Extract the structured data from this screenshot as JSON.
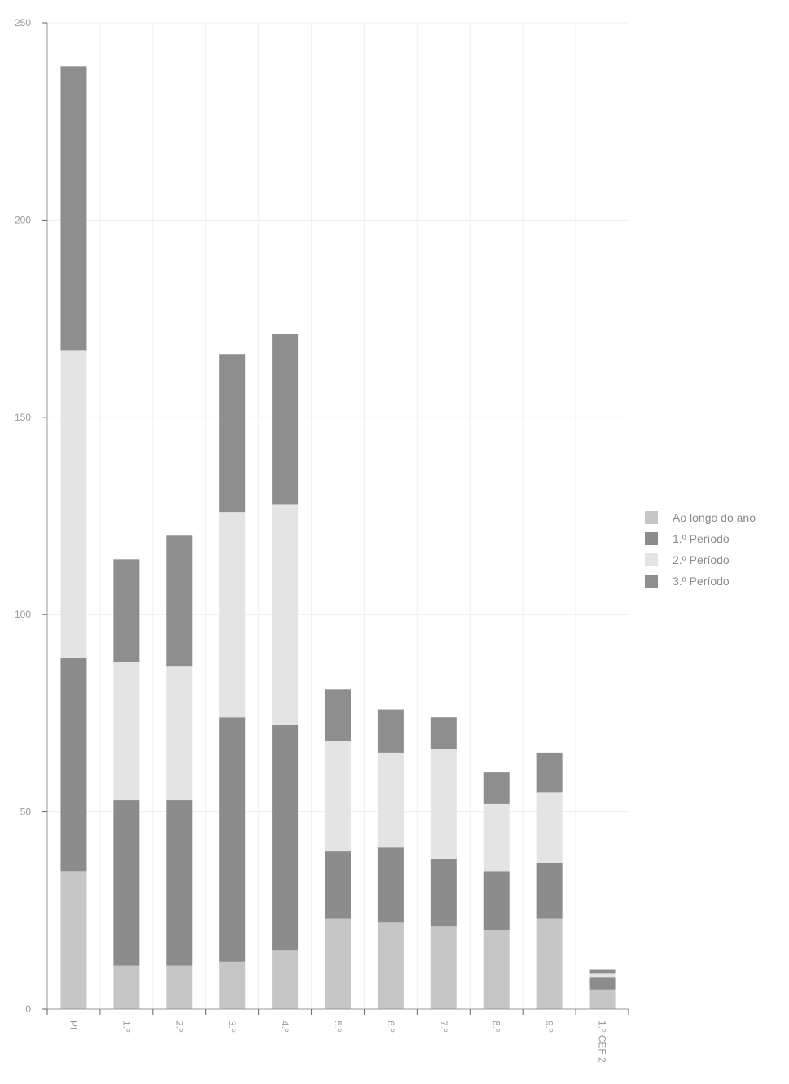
{
  "chart_data": {
    "type": "bar",
    "stacked": true,
    "title": "",
    "xlabel": "",
    "ylabel": "",
    "ylim": [
      0,
      250
    ],
    "yticks": [
      "0",
      "50",
      "100",
      "150",
      "200",
      "250"
    ],
    "grid": true,
    "legend_position": "right",
    "categories": [
      "PI",
      "1.º",
      "2.º",
      "3.º",
      "4.º",
      "5.º",
      "6.º",
      "7.º",
      "8.º",
      "9.º",
      "1.º CEF 2"
    ],
    "series": [
      {
        "name": "Ao longo do ano",
        "color": "#c6c6c6",
        "values": [
          35,
          11,
          11,
          12,
          15,
          23,
          22,
          21,
          20,
          23,
          5
        ]
      },
      {
        "name": "1.º Período",
        "color": "#8c8c8c",
        "values": [
          54,
          42,
          42,
          62,
          57,
          17,
          19,
          17,
          15,
          14,
          3
        ]
      },
      {
        "name": "2.º Período",
        "color": "#e4e4e4",
        "values": [
          78,
          35,
          34,
          52,
          56,
          28,
          24,
          28,
          17,
          18,
          1
        ]
      },
      {
        "name": "3.º Período",
        "color": "#8e8e8e",
        "values": [
          72,
          26,
          33,
          40,
          43,
          13,
          11,
          8,
          8,
          10,
          1
        ]
      }
    ]
  }
}
